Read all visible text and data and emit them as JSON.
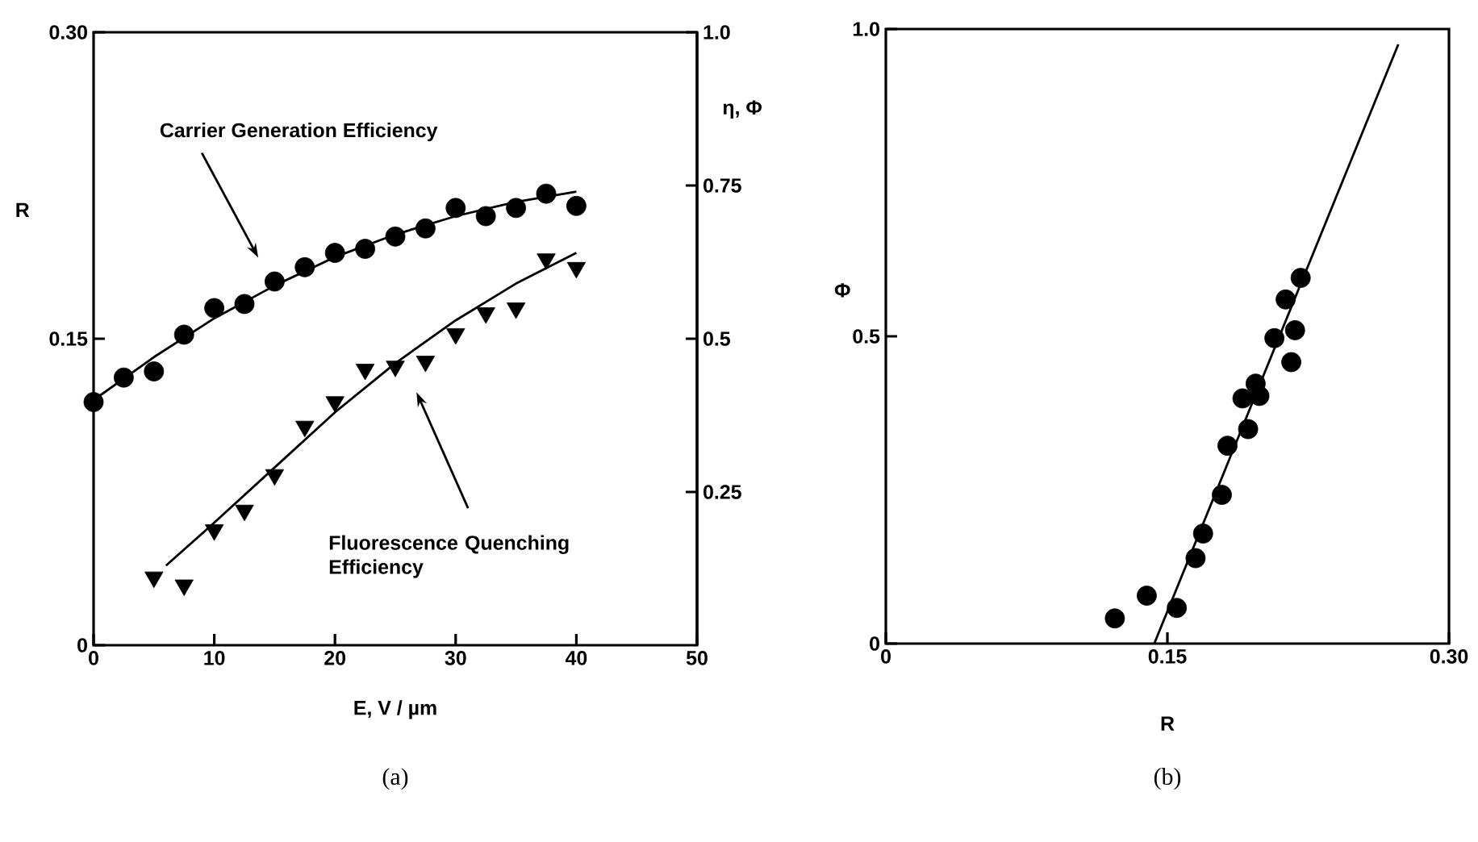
{
  "chart_data": [
    {
      "type": "scatter",
      "xlabel": "E, V / µm",
      "ylabel": "R",
      "y2label": "η, Φ",
      "xlim": [
        0,
        50
      ],
      "xticks": [
        0,
        10,
        20,
        30,
        40,
        50
      ],
      "ylim": [
        0,
        0.3
      ],
      "yticks": [
        0,
        0.15,
        {
          "value": 0.3,
          "label": "0.30"
        }
      ],
      "y2lim": [
        0,
        1
      ],
      "y2ticks": [
        0.25,
        0.5,
        0.75,
        {
          "value": 1,
          "label": "1.0"
        }
      ],
      "annotations": [
        "Carrier Generation Efficiency",
        "Fluorescence Quenching Efficiency",
        "(a)"
      ],
      "series": [
        {
          "marker": "circle",
          "color": "#000000",
          "x": [
            0,
            2.5,
            5,
            7.5,
            10,
            12.5,
            15,
            17.5,
            20,
            22.5,
            25,
            27.5,
            30,
            32.5,
            35,
            37.5,
            40
          ],
          "values": [
            0.119,
            0.131,
            0.134,
            0.152,
            0.165,
            0.167,
            0.178,
            0.185,
            0.192,
            0.194,
            0.2,
            0.204,
            0.214,
            0.21,
            0.214,
            0.221,
            0.215
          ]
        },
        {
          "type": "line",
          "color": "#000000",
          "x": [
            0,
            5,
            10,
            15,
            20,
            25,
            30,
            35,
            40
          ],
          "values": [
            0.12,
            0.141,
            0.16,
            0.176,
            0.19,
            0.201,
            0.21,
            0.217,
            0.222
          ]
        },
        {
          "marker": "triangle",
          "axis": "y2",
          "color": "#000000",
          "x": [
            5,
            7.5,
            10,
            12.5,
            15,
            17.5,
            20,
            22.5,
            25,
            27.5,
            30,
            32.5,
            35,
            37.5,
            40
          ],
          "values": [
            0.111,
            0.098,
            0.188,
            0.22,
            0.278,
            0.357,
            0.397,
            0.45,
            0.455,
            0.463,
            0.508,
            0.542,
            0.55,
            0.63,
            0.616
          ]
        },
        {
          "type": "line",
          "axis": "y2",
          "color": "#000000",
          "x": [
            6,
            10,
            15,
            20,
            25,
            30,
            35,
            40
          ],
          "values": [
            0.13,
            0.2,
            0.29,
            0.38,
            0.46,
            0.53,
            0.59,
            0.64
          ]
        }
      ]
    },
    {
      "type": "scatter",
      "xlabel": "R",
      "ylabel": "Φ",
      "xlim": [
        0,
        0.3
      ],
      "xticks": [
        0,
        0.15,
        {
          "value": 0.3,
          "label": "0.30"
        }
      ],
      "ylim": [
        0,
        1
      ],
      "yticks": [
        0,
        0.5,
        {
          "value": 1,
          "label": "1.0"
        }
      ],
      "annotations": [
        "(b)"
      ],
      "series": [
        {
          "marker": "circle",
          "color": "#000000",
          "x": [
            0.122,
            0.139,
            0.155,
            0.165,
            0.169,
            0.179,
            0.182,
            0.193,
            0.19,
            0.199,
            0.197,
            0.207,
            0.218,
            0.216,
            0.213,
            0.221
          ],
          "values": [
            0.041,
            0.078,
            0.058,
            0.139,
            0.179,
            0.242,
            0.322,
            0.349,
            0.399,
            0.403,
            0.423,
            0.497,
            0.51,
            0.458,
            0.56,
            0.595
          ]
        },
        {
          "type": "line",
          "color": "#000000",
          "x": [
            0.143,
            0.273
          ],
          "values": [
            0,
            0.975
          ]
        }
      ]
    }
  ]
}
